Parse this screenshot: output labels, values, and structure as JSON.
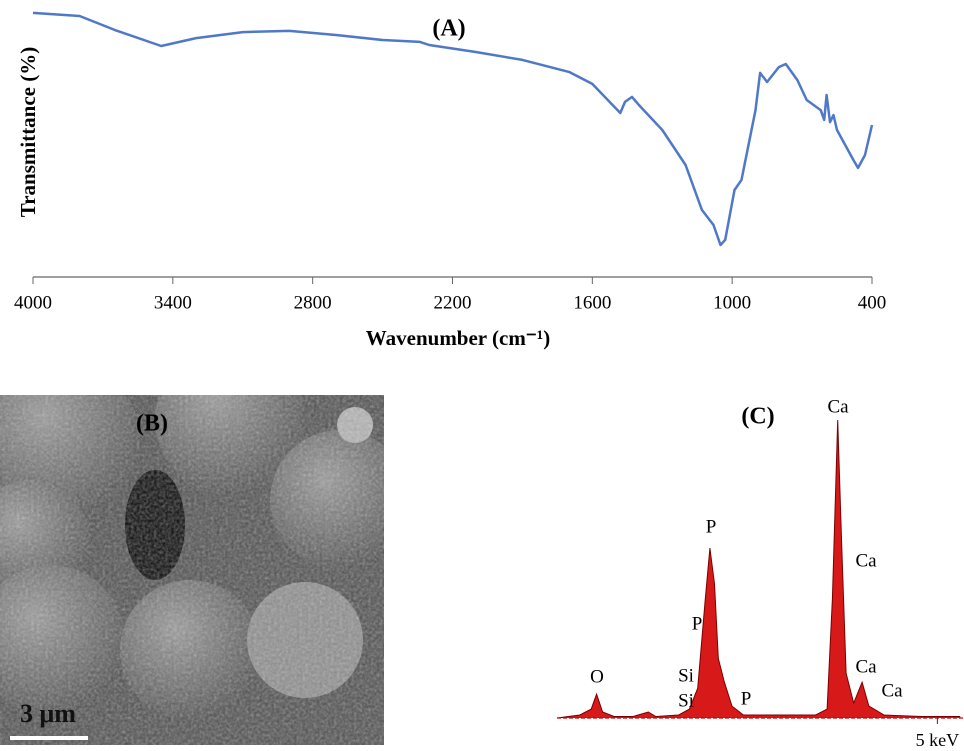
{
  "chart_data": [
    {
      "type": "line",
      "title": "(A)",
      "xlabel": "Wavenumber (cm⁻¹)",
      "ylabel": "Transmittance (%)",
      "x": [
        4000,
        3800,
        3650,
        3450,
        3300,
        3100,
        2900,
        2700,
        2500,
        2340,
        2300,
        2100,
        1900,
        1700,
        1600,
        1480,
        1460,
        1430,
        1400,
        1300,
        1200,
        1130,
        1080,
        1050,
        1030,
        990,
        960,
        900,
        880,
        850,
        800,
        770,
        720,
        680,
        620,
        605,
        595,
        580,
        565,
        550,
        480,
        460,
        430,
        400
      ],
      "values": [
        98.8,
        97.5,
        91.7,
        85,
        88.3,
        90.8,
        91.3,
        89.6,
        87.5,
        86.7,
        85.4,
        82.5,
        79.2,
        74.2,
        69.2,
        57.1,
        61.7,
        63.8,
        60.4,
        50,
        35.4,
        16.7,
        10.4,
        2.1,
        4.2,
        25,
        29.2,
        58.3,
        73.8,
        70,
        76.2,
        77.5,
        70.8,
        62.5,
        58.3,
        54.2,
        64.6,
        53.3,
        56.2,
        50,
        37.5,
        34.2,
        39.6,
        52.1
      ],
      "color": "#4f78c8",
      "xlim": [
        4000,
        400
      ],
      "ylim": [
        0,
        100
      ],
      "xticks": [
        4000,
        3400,
        2800,
        2200,
        1600,
        1000,
        400
      ]
    },
    {
      "type": "area",
      "title": "(C)",
      "x": [
        0,
        0.3,
        0.45,
        0.52,
        0.6,
        0.75,
        1.0,
        1.2,
        1.3,
        1.6,
        1.74,
        1.85,
        1.95,
        2.01,
        2.07,
        2.12,
        2.2,
        2.3,
        2.45,
        2.6,
        3.0,
        3.4,
        3.55,
        3.62,
        3.69,
        3.74,
        3.8,
        3.9,
        4.01,
        4.1,
        4.3,
        4.8,
        5.3
      ],
      "values": [
        0,
        1,
        3,
        8,
        2,
        0.5,
        0.5,
        2,
        0.5,
        1,
        3,
        10,
        40,
        57,
        45,
        20,
        12,
        4,
        1,
        1,
        1,
        1,
        3,
        40,
        100,
        60,
        15,
        5,
        12,
        4,
        1,
        0.5,
        0.5
      ],
      "color": "#d40000",
      "xlim": [
        0,
        5.35
      ],
      "ylim": [
        0,
        100
      ],
      "xticks": [
        {
          "value": 5,
          "label": "5 keV"
        }
      ],
      "annotations": [
        "O",
        "Si",
        "Si",
        "P",
        "P",
        "P",
        "Ca",
        "Ca",
        "Ca",
        "Ca"
      ]
    }
  ],
  "image_panel": {
    "label": "(B)",
    "scale_bar": "3 μm"
  }
}
